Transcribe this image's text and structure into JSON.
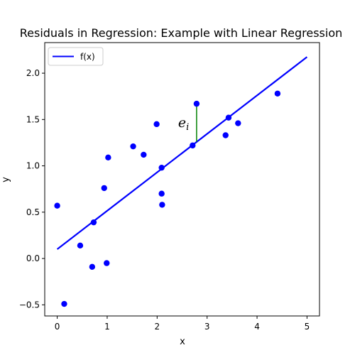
{
  "chart_data": {
    "type": "scatter",
    "title": "Residuals in Regression: Example with Linear Regression",
    "xlabel": "x",
    "ylabel": "y",
    "xlim": [
      -0.25,
      5.25
    ],
    "ylim": [
      -0.62,
      2.33
    ],
    "xticks": [
      0,
      1,
      2,
      3,
      4,
      5
    ],
    "xtick_labels": [
      "0",
      "1",
      "2",
      "3",
      "4",
      "5"
    ],
    "yticks": [
      -0.5,
      0.0,
      0.5,
      1.0,
      1.5,
      2.0
    ],
    "ytick_labels": [
      "−0.5",
      "0.0",
      "0.5",
      "1.0",
      "1.5",
      "2.0"
    ],
    "grid": false,
    "legend": {
      "position": "top-left",
      "entries": [
        "f(x)"
      ]
    },
    "series": [
      {
        "kind": "scatter",
        "color": "#0000ff",
        "points": [
          [
            0.0,
            0.57
          ],
          [
            0.14,
            -0.49
          ],
          [
            0.46,
            0.14
          ],
          [
            0.7,
            -0.09
          ],
          [
            0.73,
            0.39
          ],
          [
            0.94,
            0.76
          ],
          [
            0.99,
            -0.05
          ],
          [
            1.02,
            1.09
          ],
          [
            1.52,
            1.21
          ],
          [
            1.73,
            1.12
          ],
          [
            1.99,
            1.45
          ],
          [
            2.09,
            0.98
          ],
          [
            2.09,
            0.7
          ],
          [
            2.1,
            0.58
          ],
          [
            2.71,
            1.22
          ],
          [
            2.79,
            1.67
          ],
          [
            3.37,
            1.33
          ],
          [
            3.43,
            1.52
          ],
          [
            3.62,
            1.46
          ],
          [
            4.41,
            1.78
          ]
        ]
      },
      {
        "kind": "line",
        "name": "f(x)",
        "color": "#0000ff",
        "intercept": 0.1,
        "slope": 0.415,
        "x_range": [
          0,
          5
        ]
      }
    ],
    "residual": {
      "x": 2.79,
      "y_point": 1.67,
      "y_fit": 1.26,
      "color": "#008000"
    },
    "annotation": {
      "text_main": "e",
      "text_sub": "i",
      "x": 2.42,
      "y": 1.42
    }
  }
}
